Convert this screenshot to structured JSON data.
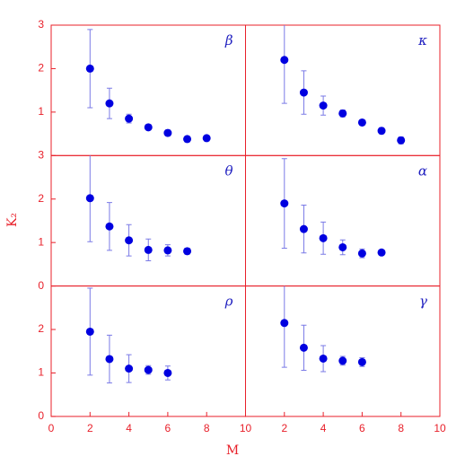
{
  "xlabel": "M",
  "ylabel": "K₂",
  "chart_data": [
    {
      "type": "scatter",
      "label": "β",
      "x": [
        2,
        3,
        4,
        5,
        6,
        7,
        8
      ],
      "values": [
        2.0,
        1.2,
        0.85,
        0.65,
        0.52,
        0.38,
        0.4
      ],
      "errors": [
        0.9,
        0.35,
        0.1,
        0.04,
        0.07,
        0.04,
        0.04
      ],
      "xlim": [
        0,
        10
      ],
      "ylim": [
        0,
        3
      ],
      "yticks": [
        1,
        2,
        3
      ],
      "color": "#0000e0",
      "error_color": "#7a7ae6"
    },
    {
      "type": "scatter",
      "label": "κ",
      "x": [
        2,
        3,
        4,
        5,
        6,
        7,
        8
      ],
      "values": [
        2.2,
        1.45,
        1.15,
        0.97,
        0.76,
        0.57,
        0.35
      ],
      "errors": [
        1.0,
        0.5,
        0.22,
        0.08,
        0.04,
        0.07,
        0.08
      ],
      "xlim": [
        0,
        10
      ],
      "ylim": [
        0,
        3
      ],
      "color": "#0000e0",
      "error_color": "#7a7ae6"
    },
    {
      "type": "scatter",
      "label": "θ",
      "x": [
        2,
        3,
        4,
        5,
        6,
        7
      ],
      "values": [
        2.02,
        1.37,
        1.05,
        0.83,
        0.82,
        0.8
      ],
      "errors": [
        1.0,
        0.55,
        0.36,
        0.25,
        0.13,
        0.07
      ],
      "xlim": [
        0,
        10
      ],
      "ylim": [
        0,
        3
      ],
      "yticks": [
        0,
        1,
        2,
        3
      ],
      "color": "#0000e0",
      "error_color": "#7a7ae6"
    },
    {
      "type": "scatter",
      "label": "α",
      "x": [
        2,
        3,
        4,
        5,
        6,
        7
      ],
      "values": [
        1.9,
        1.31,
        1.1,
        0.89,
        0.75,
        0.77
      ],
      "errors": [
        1.03,
        0.55,
        0.37,
        0.17,
        0.1,
        0.05
      ],
      "xlim": [
        0,
        10
      ],
      "ylim": [
        0,
        3
      ],
      "color": "#0000e0",
      "error_color": "#7a7ae6"
    },
    {
      "type": "scatter",
      "label": "ρ",
      "x": [
        2,
        3,
        4,
        5,
        6
      ],
      "values": [
        1.95,
        1.32,
        1.1,
        1.07,
        1.0
      ],
      "errors": [
        1.0,
        0.55,
        0.32,
        0.1,
        0.16
      ],
      "xlim": [
        0,
        10
      ],
      "ylim": [
        0,
        3
      ],
      "xticks": [
        0,
        2,
        4,
        6,
        8,
        10
      ],
      "yticks": [
        0,
        1,
        2
      ],
      "color": "#0000e0",
      "error_color": "#7a7ae6"
    },
    {
      "type": "scatter",
      "label": "γ",
      "x": [
        2,
        3,
        4,
        5,
        6
      ],
      "values": [
        2.15,
        1.58,
        1.33,
        1.28,
        1.25
      ],
      "errors": [
        1.02,
        0.52,
        0.3,
        0.1,
        0.1
      ],
      "xlim": [
        0,
        10
      ],
      "ylim": [
        0,
        3
      ],
      "xticks": [
        2,
        4,
        6,
        8,
        10
      ],
      "color": "#0000e0",
      "error_color": "#7a7ae6"
    }
  ]
}
